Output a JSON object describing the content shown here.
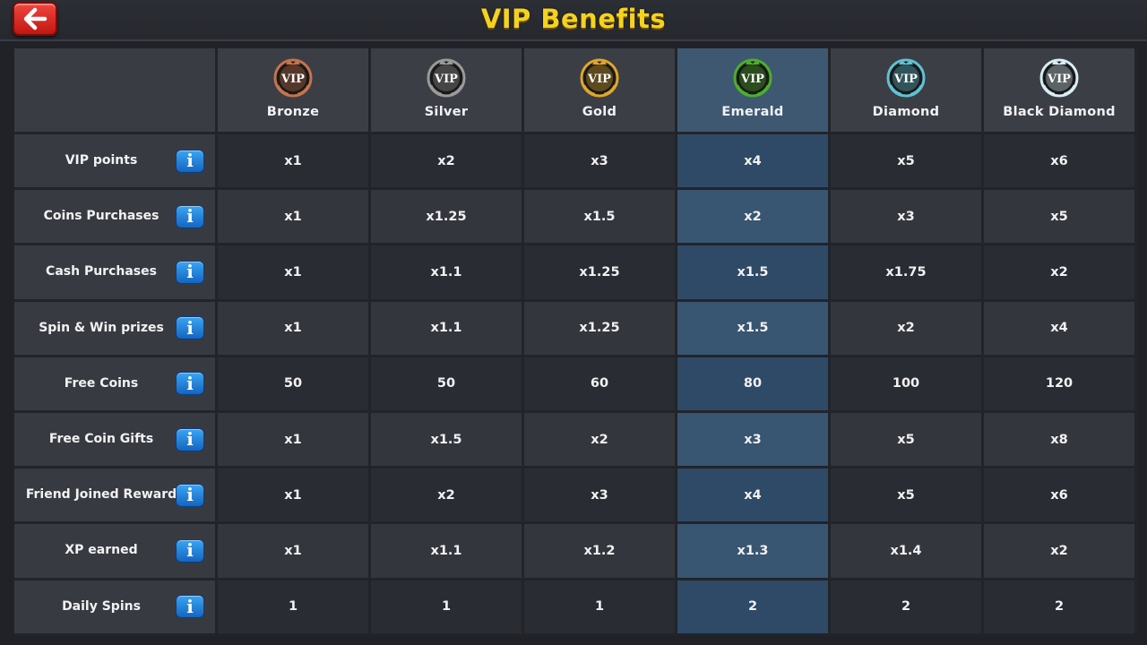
{
  "header": {
    "title": "VIP Benefits",
    "back_icon": "back-arrow-icon"
  },
  "tiers": [
    {
      "name": "Bronze",
      "badge_text": "VIP",
      "color": "#c8734c"
    },
    {
      "name": "Silver",
      "badge_text": "VIP",
      "color": "#9a9a9a"
    },
    {
      "name": "Gold",
      "badge_text": "VIP",
      "color": "#e0a62a"
    },
    {
      "name": "Emerald",
      "badge_text": "VIP",
      "color": "#4caf2a"
    },
    {
      "name": "Diamond",
      "badge_text": "VIP",
      "color": "#5ec3d3"
    },
    {
      "name": "Black Diamond",
      "badge_text": "VIP",
      "color": "#d8eef5"
    }
  ],
  "rows": [
    {
      "label": "VIP points",
      "values": [
        "x1",
        "x2",
        "x3",
        "x4",
        "x5",
        "x6"
      ]
    },
    {
      "label": "Coins Purchases",
      "values": [
        "x1",
        "x1.25",
        "x1.5",
        "x2",
        "x3",
        "x5"
      ]
    },
    {
      "label": "Cash Purchases",
      "values": [
        "x1",
        "x1.1",
        "x1.25",
        "x1.5",
        "x1.75",
        "x2"
      ]
    },
    {
      "label": "Spin & Win prizes",
      "values": [
        "x1",
        "x1.1",
        "x1.25",
        "x1.5",
        "x2",
        "x4"
      ]
    },
    {
      "label": "Free Coins",
      "values": [
        "50",
        "50",
        "60",
        "80",
        "100",
        "120"
      ]
    },
    {
      "label": "Free Coin Gifts",
      "values": [
        "x1",
        "x1.5",
        "x2",
        "x3",
        "x5",
        "x8"
      ]
    },
    {
      "label": "Friend Joined Reward",
      "values": [
        "x1",
        "x2",
        "x3",
        "x4",
        "x5",
        "x6"
      ]
    },
    {
      "label": "XP earned",
      "values": [
        "x1",
        "x1.1",
        "x1.2",
        "x1.3",
        "x1.4",
        "x2"
      ]
    },
    {
      "label": "Daily Spins",
      "values": [
        "1",
        "1",
        "1",
        "2",
        "2",
        "2"
      ]
    }
  ],
  "highlighted_tier": "Emerald",
  "info_button_text": "i",
  "colors": {
    "title": "#f4d21f",
    "highlight_column": "#3e5872",
    "info_button": "#2a8fe0",
    "back_button": "#d9261f"
  }
}
